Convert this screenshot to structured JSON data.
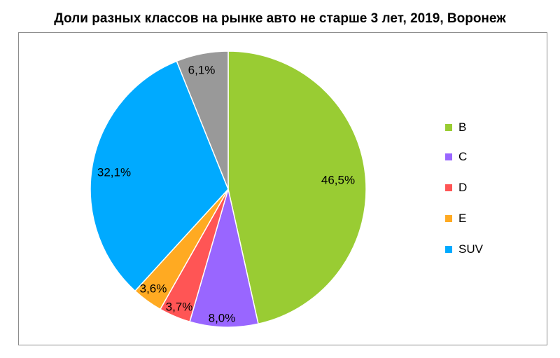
{
  "chart_data": {
    "type": "pie",
    "title": "Доли разных классов на рынке авто не старше 3 лет, 2019, Воронеж",
    "slices": [
      {
        "category": "B",
        "value": 46.5,
        "label": "46,5%",
        "color": "#99cc33"
      },
      {
        "category": "C",
        "value": 8.0,
        "label": "8,0%",
        "color": "#9966ff"
      },
      {
        "category": "D",
        "value": 3.7,
        "label": "3,7%",
        "color": "#ff5555"
      },
      {
        "category": "E",
        "value": 3.6,
        "label": "3,6%",
        "color": "#ffaa22"
      },
      {
        "category": "SUV",
        "value": 32.1,
        "label": "32,1%",
        "color": "#00aaff"
      },
      {
        "category": "",
        "value": 6.1,
        "label": "6,1%",
        "color": "#999999"
      }
    ],
    "legend": {
      "placement": "right",
      "entries": [
        {
          "label": "B",
          "color": "#99cc33"
        },
        {
          "label": "C",
          "color": "#9966ff"
        },
        {
          "label": "D",
          "color": "#ff5555"
        },
        {
          "label": "E",
          "color": "#ffaa22"
        },
        {
          "label": "SUV",
          "color": "#00aaff"
        }
      ]
    }
  }
}
